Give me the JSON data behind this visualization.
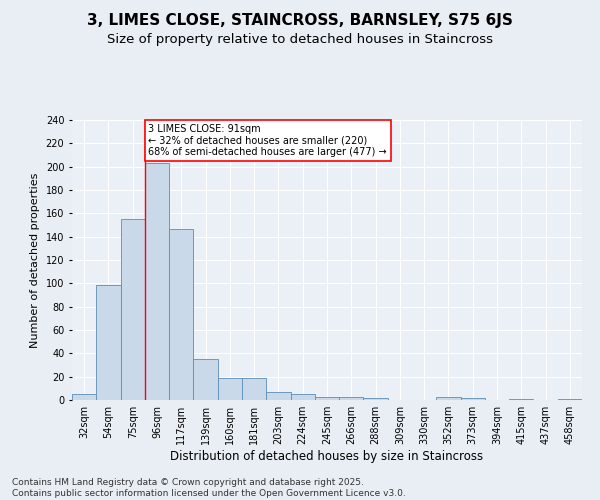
{
  "title1": "3, LIMES CLOSE, STAINCROSS, BARNSLEY, S75 6JS",
  "title2": "Size of property relative to detached houses in Staincross",
  "xlabel": "Distribution of detached houses by size in Staincross",
  "ylabel": "Number of detached properties",
  "categories": [
    "32sqm",
    "54sqm",
    "75sqm",
    "96sqm",
    "117sqm",
    "139sqm",
    "160sqm",
    "181sqm",
    "203sqm",
    "224sqm",
    "245sqm",
    "266sqm",
    "288sqm",
    "309sqm",
    "330sqm",
    "352sqm",
    "373sqm",
    "394sqm",
    "415sqm",
    "437sqm",
    "458sqm"
  ],
  "values": [
    5,
    99,
    155,
    203,
    147,
    35,
    19,
    19,
    7,
    5,
    3,
    3,
    2,
    0,
    0,
    3,
    2,
    0,
    1,
    0,
    1
  ],
  "bar_color": "#c9d9ea",
  "bar_edge_color": "#5b8db8",
  "red_line_index": 3,
  "annotation_text1": "3 LIMES CLOSE: 91sqm",
  "annotation_text2": "← 32% of detached houses are smaller (220)",
  "annotation_text3": "68% of semi-detached houses are larger (477) →",
  "annotation_box_color": "white",
  "annotation_box_edge": "red",
  "ylim": [
    0,
    240
  ],
  "yticks": [
    0,
    20,
    40,
    60,
    80,
    100,
    120,
    140,
    160,
    180,
    200,
    220,
    240
  ],
  "bg_color": "#e8eef4",
  "plot_bg_color": "#eaf0f6",
  "footer_line1": "Contains HM Land Registry data © Crown copyright and database right 2025.",
  "footer_line2": "Contains public sector information licensed under the Open Government Licence v3.0.",
  "title1_fontsize": 11,
  "title2_fontsize": 9.5,
  "xlabel_fontsize": 8.5,
  "ylabel_fontsize": 8,
  "tick_fontsize": 7,
  "footer_fontsize": 6.5
}
